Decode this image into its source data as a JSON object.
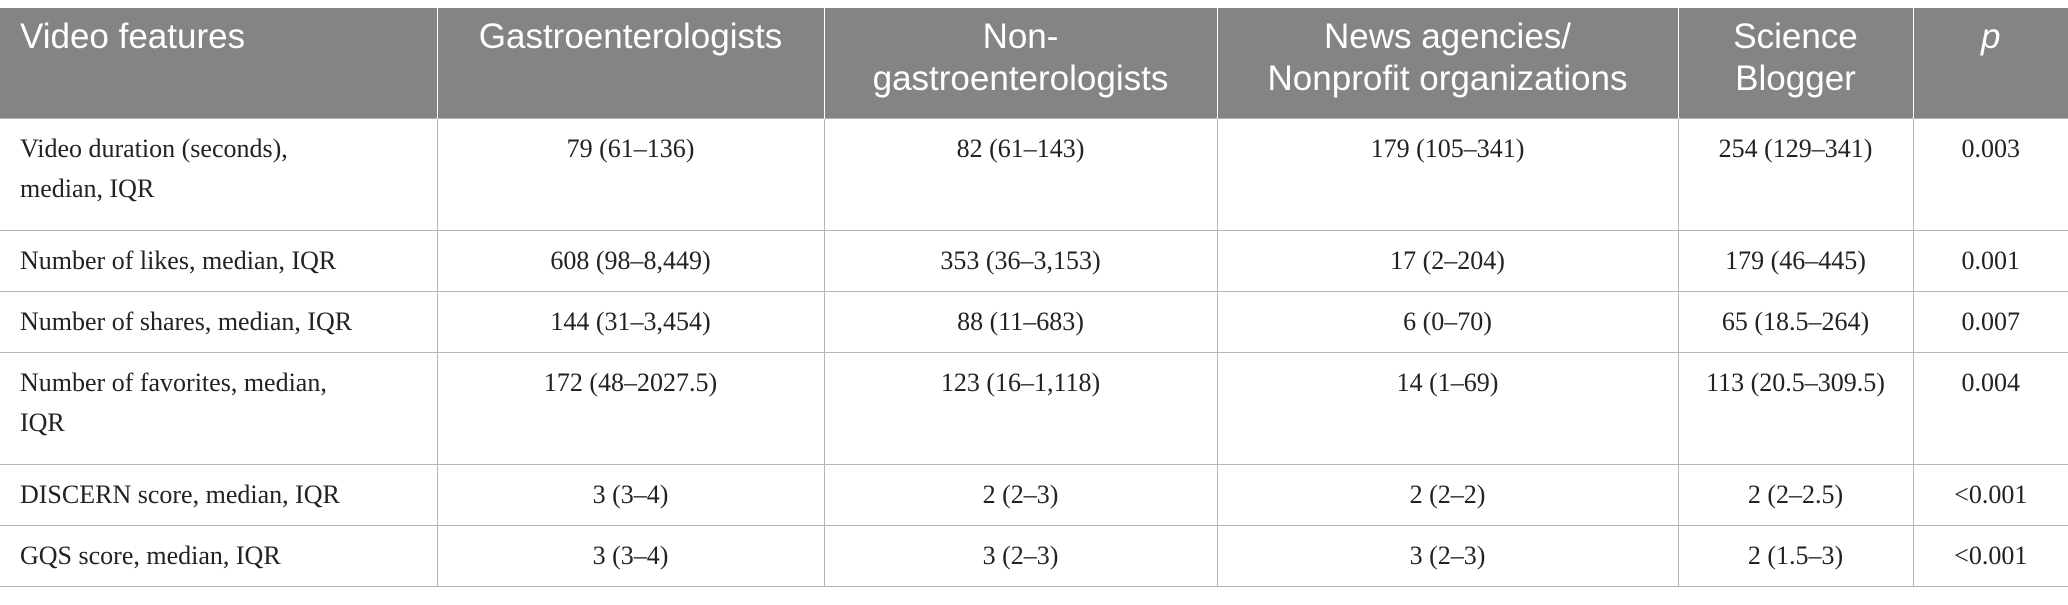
{
  "table": {
    "headers": [
      "Video features",
      "Gastroenterologists",
      "Non-\ngastroenterologists",
      "News agencies/\nNonprofit organizations",
      "Science\nBlogger",
      "p"
    ],
    "rows": [
      [
        "Video duration (seconds),\nmedian, IQR",
        "79 (61–136)",
        "82 (61–143)",
        "179 (105–341)",
        "254 (129–341)",
        "0.003"
      ],
      [
        "Number of likes, median, IQR",
        "608 (98–8,449)",
        "353 (36–3,153)",
        "17 (2–204)",
        "179 (46–445)",
        "0.001"
      ],
      [
        "Number of shares, median, IQR",
        "144 (31–3,454)",
        "88 (11–683)",
        "6 (0–70)",
        "65 (18.5–264)",
        "0.007"
      ],
      [
        "Number of favorites, median,\nIQR",
        "172 (48–2027.5)",
        "123 (16–1,118)",
        "14 (1–69)",
        "113 (20.5–309.5)",
        "0.004"
      ],
      [
        "DISCERN score, median, IQR",
        "3 (3–4)",
        "2 (2–3)",
        "2 (2–2)",
        "2 (2–2.5)",
        "<0.001"
      ],
      [
        "GQS score, median, IQR",
        "3 (3–4)",
        "3 (2–3)",
        "3 (2–3)",
        "2 (1.5–3)",
        "<0.001"
      ]
    ]
  },
  "colors": {
    "header_bg": "#848482",
    "header_text": "#ffffff",
    "border": "#b5b5b5",
    "body_text": "#222222"
  }
}
